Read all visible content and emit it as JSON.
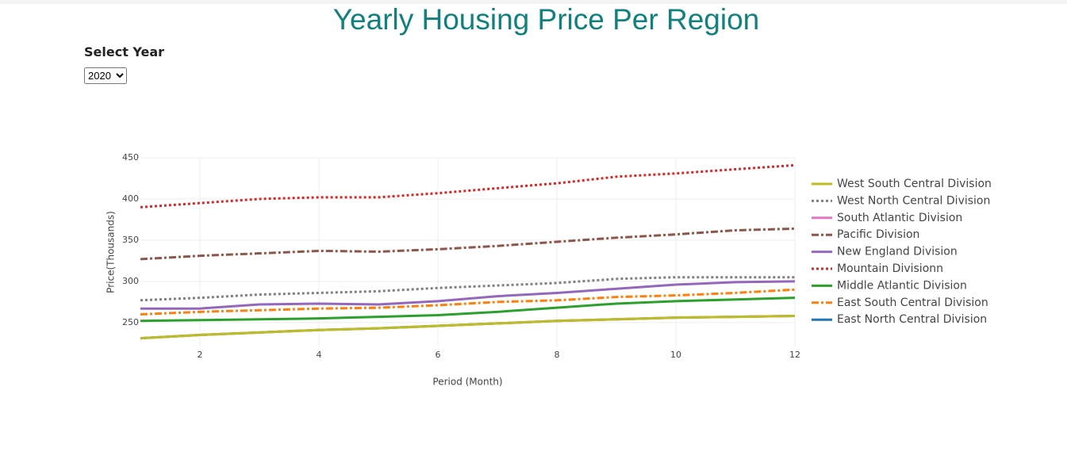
{
  "header": {
    "title": "Yearly Housing Price Per Region"
  },
  "controls": {
    "label": "Select Year",
    "options": [
      "2020"
    ]
  },
  "chart_data": {
    "type": "line",
    "xlabel": "Period (Month)",
    "ylabel": "Price(Thousands)",
    "x": [
      1,
      2,
      3,
      4,
      5,
      6,
      7,
      8,
      9,
      10,
      11,
      12
    ],
    "xlim": [
      1,
      12
    ],
    "xticks": [
      2,
      4,
      6,
      8,
      10,
      12
    ],
    "ylim": [
      221,
      450
    ],
    "yticks": [
      250,
      300,
      350,
      400,
      450
    ],
    "grid": true,
    "legend": "right",
    "series": [
      {
        "name": "East North Central Division",
        "color": "#1f77b4",
        "dash": "solid",
        "values": [
          231,
          235,
          238,
          241,
          243,
          246,
          249,
          252,
          254,
          256,
          257,
          258
        ]
      },
      {
        "name": "East South Central Division",
        "color": "#ff7f0e",
        "dash": "dashdot",
        "values": [
          260,
          263,
          265,
          267,
          268,
          271,
          275,
          277,
          281,
          283,
          286,
          290
        ]
      },
      {
        "name": "Middle Atlantic Division",
        "color": "#2ca02c",
        "dash": "solid",
        "values": [
          252,
          253,
          254,
          255,
          257,
          259,
          263,
          268,
          273,
          276,
          278,
          280
        ]
      },
      {
        "name": "Mountain Divisionn",
        "color": "#d62728",
        "dash": "dot",
        "values": [
          390,
          395,
          400,
          402,
          402,
          407,
          413,
          419,
          427,
          431,
          436,
          441
        ]
      },
      {
        "name": "New England Division",
        "color": "#9467bd",
        "dash": "solid",
        "values": [
          267,
          267,
          272,
          273,
          272,
          276,
          282,
          286,
          291,
          296,
          299,
          300
        ]
      },
      {
        "name": "Pacific Division",
        "color": "#8c564b",
        "dash": "dashdot",
        "values": [
          327,
          331,
          334,
          337,
          336,
          339,
          343,
          348,
          353,
          357,
          362,
          364
        ]
      },
      {
        "name": "South Atlantic Division",
        "color": "#e377c2",
        "dash": "solid",
        "values": [
          231,
          235,
          238,
          241,
          243,
          246,
          249,
          252,
          254,
          256,
          257,
          258
        ]
      },
      {
        "name": "West North Central Division",
        "color": "#7f7f7f",
        "dash": "dot",
        "values": [
          277,
          280,
          284,
          286,
          288,
          292,
          295,
          298,
          303,
          305,
          305,
          305
        ]
      },
      {
        "name": "West South Central Division",
        "color": "#bcbd22",
        "dash": "solid",
        "values": [
          231,
          235,
          238,
          241,
          243,
          246,
          249,
          252,
          254,
          256,
          257,
          258
        ]
      }
    ]
  }
}
